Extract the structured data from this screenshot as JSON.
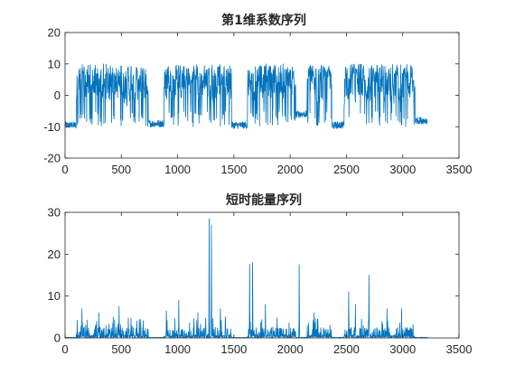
{
  "chart_data": [
    {
      "type": "line",
      "title": "第1维系数序列",
      "xlabel": "",
      "ylabel": "",
      "xlim": [
        0,
        3500
      ],
      "ylim": [
        -20,
        20
      ],
      "xticks": [
        0,
        500,
        1000,
        1500,
        2000,
        2500,
        3000,
        3500
      ],
      "xtick_labels": [
        "0",
        "500",
        "1000",
        "1500",
        "2000",
        "2500",
        "3000",
        "3500"
      ],
      "yticks": [
        -20,
        -10,
        0,
        10,
        20
      ],
      "ytick_labels": [
        "-20",
        "-10",
        "0",
        "10",
        "20"
      ],
      "grid": false,
      "color": "#0072BD",
      "n_points": 3220,
      "segments": [
        {
          "x_start": 0,
          "x_end": 100,
          "state": "low",
          "level": -9.5
        },
        {
          "x_start": 100,
          "x_end": 740,
          "state": "active",
          "level": 3
        },
        {
          "x_start": 740,
          "x_end": 880,
          "state": "low",
          "level": -9
        },
        {
          "x_start": 880,
          "x_end": 1480,
          "state": "active",
          "level": 4
        },
        {
          "x_start": 1480,
          "x_end": 1620,
          "state": "low",
          "level": -9.5
        },
        {
          "x_start": 1620,
          "x_end": 2050,
          "state": "active",
          "level": 4
        },
        {
          "x_start": 2050,
          "x_end": 2150,
          "state": "low",
          "level": -6
        },
        {
          "x_start": 2150,
          "x_end": 2370,
          "state": "active",
          "level": 3
        },
        {
          "x_start": 2370,
          "x_end": 2480,
          "state": "low",
          "level": -9.5
        },
        {
          "x_start": 2480,
          "x_end": 3110,
          "state": "active",
          "level": 3
        },
        {
          "x_start": 3110,
          "x_end": 3220,
          "state": "low",
          "level": -8
        }
      ]
    },
    {
      "type": "line",
      "title": "短时能量序列",
      "xlabel": "",
      "ylabel": "",
      "xlim": [
        0,
        3500
      ],
      "ylim": [
        0,
        30
      ],
      "xticks": [
        0,
        500,
        1000,
        1500,
        2000,
        2500,
        3000,
        3500
      ],
      "xtick_labels": [
        "0",
        "500",
        "1000",
        "1500",
        "2000",
        "2500",
        "3000",
        "3500"
      ],
      "yticks": [
        0,
        10,
        20,
        30
      ],
      "ytick_labels": [
        "0",
        "10",
        "20",
        "30"
      ],
      "grid": false,
      "color": "#0072BD",
      "n_points": 3220,
      "activity_ranges": [
        [
          100,
          740
        ],
        [
          880,
          1480
        ],
        [
          1620,
          2050
        ],
        [
          2150,
          2370
        ],
        [
          2480,
          3110
        ]
      ],
      "peaks": [
        {
          "x": 150,
          "y": 7
        },
        {
          "x": 300,
          "y": 6
        },
        {
          "x": 480,
          "y": 7.5
        },
        {
          "x": 900,
          "y": 6.5
        },
        {
          "x": 1010,
          "y": 9
        },
        {
          "x": 1180,
          "y": 6
        },
        {
          "x": 1280,
          "y": 28.5
        },
        {
          "x": 1300,
          "y": 27
        },
        {
          "x": 1380,
          "y": 7
        },
        {
          "x": 1640,
          "y": 17.5
        },
        {
          "x": 1665,
          "y": 18
        },
        {
          "x": 1780,
          "y": 8
        },
        {
          "x": 2080,
          "y": 17.5
        },
        {
          "x": 2210,
          "y": 6
        },
        {
          "x": 2520,
          "y": 11
        },
        {
          "x": 2580,
          "y": 8
        },
        {
          "x": 2700,
          "y": 15
        },
        {
          "x": 2860,
          "y": 7
        },
        {
          "x": 2990,
          "y": 7
        }
      ]
    }
  ]
}
